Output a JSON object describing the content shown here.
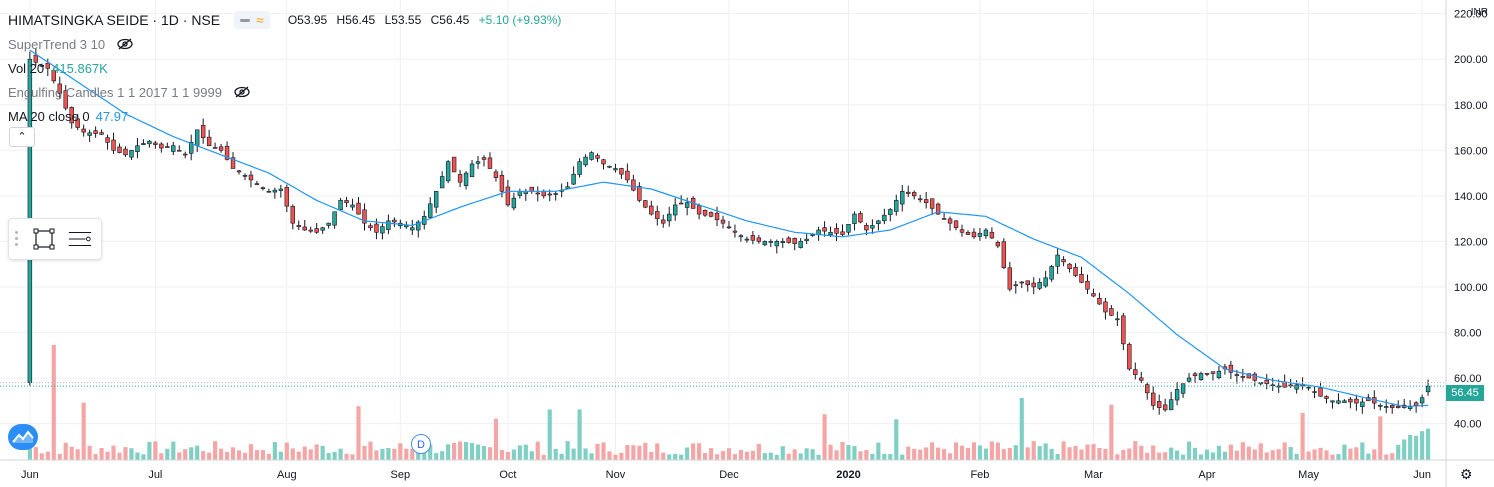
{
  "header": {
    "symbol": "HIMATSINGKA SEIDE · 1D · NSE",
    "open": "O53.95",
    "high": "H56.45",
    "low": "L53.55",
    "close": "C56.45",
    "change": "+5.10 (+9.93%)"
  },
  "indicators": {
    "supertrend": "SuperTrend 3 10",
    "vol_name": "Vol 20",
    "vol_value": "415.867K",
    "engulfing": "Engulfing Candles 1 1 2017 1 1 9999",
    "ma_name": "MA 20 close 0",
    "ma_value": "47.97"
  },
  "currency": "INR",
  "last_price_label": "56.45",
  "event_marker": "D",
  "collapse_glyph": "⌃",
  "settings_glyph": "⚙",
  "colors": {
    "up": "#26a69a",
    "down": "#ef5350",
    "ma": "#2196f3",
    "up_vol": "#7fcfc4",
    "down_vol": "#f3a6a5",
    "grid": "#eef0f3"
  },
  "chart_data": {
    "type": "candlestick",
    "title": "HIMATSINGKA SEIDE · 1D · NSE",
    "y_ticks": [
      40,
      60,
      80,
      100,
      120,
      140,
      160,
      180,
      200,
      220
    ],
    "ylim": [
      24,
      226
    ],
    "x_ticks": [
      {
        "label": "Jun",
        "day": 0
      },
      {
        "label": "Jul",
        "day": 21
      },
      {
        "label": "Aug",
        "day": 43
      },
      {
        "label": "Sep",
        "day": 62
      },
      {
        "label": "Oct",
        "day": 80
      },
      {
        "label": "Nov",
        "day": 98
      },
      {
        "label": "Dec",
        "day": 117
      },
      {
        "label": "2020",
        "day": 137
      },
      {
        "label": "Feb",
        "day": 159
      },
      {
        "label": "Mar",
        "day": 178
      },
      {
        "label": "Apr",
        "day": 197
      },
      {
        "label": "May",
        "day": 214
      },
      {
        "label": "Jun",
        "day": 233
      }
    ],
    "x_range": [
      -5,
      237
    ],
    "close_anchors": [
      [
        0,
        200
      ],
      [
        3,
        196
      ],
      [
        5,
        185
      ],
      [
        7,
        172
      ],
      [
        9,
        168
      ],
      [
        12,
        167
      ],
      [
        14,
        160
      ],
      [
        16,
        158
      ],
      [
        18,
        162
      ],
      [
        20,
        164
      ],
      [
        22,
        161
      ],
      [
        24,
        162
      ],
      [
        26,
        158
      ],
      [
        28,
        169
      ],
      [
        30,
        162
      ],
      [
        32,
        160
      ],
      [
        34,
        152
      ],
      [
        36,
        149
      ],
      [
        38,
        145
      ],
      [
        40,
        142
      ],
      [
        42,
        143
      ],
      [
        44,
        128
      ],
      [
        46,
        125
      ],
      [
        48,
        124
      ],
      [
        50,
        128
      ],
      [
        52,
        138
      ],
      [
        54,
        136
      ],
      [
        56,
        128
      ],
      [
        58,
        124
      ],
      [
        60,
        129
      ],
      [
        62,
        128
      ],
      [
        64,
        126
      ],
      [
        66,
        131
      ],
      [
        68,
        142
      ],
      [
        70,
        155
      ],
      [
        72,
        146
      ],
      [
        74,
        154
      ],
      [
        76,
        156
      ],
      [
        78,
        148
      ],
      [
        80,
        136
      ],
      [
        82,
        142
      ],
      [
        84,
        142
      ],
      [
        86,
        140
      ],
      [
        88,
        141
      ],
      [
        90,
        144
      ],
      [
        92,
        155
      ],
      [
        94,
        159
      ],
      [
        96,
        154
      ],
      [
        98,
        152
      ],
      [
        100,
        147
      ],
      [
        102,
        138
      ],
      [
        104,
        132
      ],
      [
        106,
        128
      ],
      [
        108,
        136
      ],
      [
        110,
        137
      ],
      [
        112,
        132
      ],
      [
        114,
        131
      ],
      [
        116,
        128
      ],
      [
        118,
        124
      ],
      [
        120,
        121
      ],
      [
        122,
        120
      ],
      [
        124,
        120
      ],
      [
        126,
        120
      ],
      [
        128,
        119
      ],
      [
        130,
        121
      ],
      [
        132,
        125
      ],
      [
        134,
        124
      ],
      [
        136,
        123
      ],
      [
        138,
        132
      ],
      [
        140,
        125
      ],
      [
        142,
        129
      ],
      [
        144,
        134
      ],
      [
        146,
        142
      ],
      [
        148,
        140
      ],
      [
        150,
        137
      ],
      [
        152,
        132
      ],
      [
        154,
        128
      ],
      [
        156,
        124
      ],
      [
        158,
        122
      ],
      [
        160,
        125
      ],
      [
        162,
        118
      ],
      [
        164,
        99
      ],
      [
        166,
        102
      ],
      [
        168,
        100
      ],
      [
        170,
        104
      ],
      [
        172,
        114
      ],
      [
        174,
        108
      ],
      [
        176,
        102
      ],
      [
        178,
        96
      ],
      [
        180,
        89
      ],
      [
        182,
        86
      ],
      [
        184,
        64
      ],
      [
        186,
        59
      ],
      [
        188,
        48
      ],
      [
        190,
        46
      ],
      [
        192,
        55
      ],
      [
        194,
        60
      ],
      [
        196,
        62
      ],
      [
        198,
        62
      ],
      [
        200,
        64
      ],
      [
        202,
        61
      ],
      [
        204,
        60
      ],
      [
        206,
        58
      ],
      [
        208,
        57
      ],
      [
        210,
        56
      ],
      [
        212,
        57
      ],
      [
        214,
        56
      ],
      [
        216,
        52
      ],
      [
        218,
        50
      ],
      [
        220,
        50
      ],
      [
        222,
        49
      ],
      [
        224,
        50
      ],
      [
        226,
        48
      ],
      [
        228,
        47
      ],
      [
        230,
        47
      ],
      [
        232,
        48
      ],
      [
        233,
        51.35
      ],
      [
        234,
        56.45
      ]
    ],
    "ma_anchors": [
      [
        0,
        204
      ],
      [
        8,
        190
      ],
      [
        16,
        176
      ],
      [
        24,
        166
      ],
      [
        32,
        158
      ],
      [
        40,
        150
      ],
      [
        48,
        138
      ],
      [
        56,
        129
      ],
      [
        64,
        127
      ],
      [
        72,
        135
      ],
      [
        80,
        142
      ],
      [
        88,
        142
      ],
      [
        96,
        146
      ],
      [
        104,
        143
      ],
      [
        112,
        136
      ],
      [
        120,
        129
      ],
      [
        128,
        124
      ],
      [
        136,
        122
      ],
      [
        144,
        125
      ],
      [
        152,
        133
      ],
      [
        160,
        131
      ],
      [
        168,
        121
      ],
      [
        176,
        113
      ],
      [
        184,
        97
      ],
      [
        192,
        79
      ],
      [
        200,
        64
      ],
      [
        208,
        59
      ],
      [
        216,
        56
      ],
      [
        224,
        51
      ],
      [
        230,
        47.5
      ],
      [
        234,
        47.97
      ]
    ],
    "last_bar": {
      "open": 53.95,
      "high": 56.45,
      "low": 53.55,
      "close": 56.45
    },
    "volume_spike_days": [
      4,
      9,
      55,
      78,
      87,
      92,
      133,
      145,
      166,
      181,
      213,
      226
    ]
  }
}
